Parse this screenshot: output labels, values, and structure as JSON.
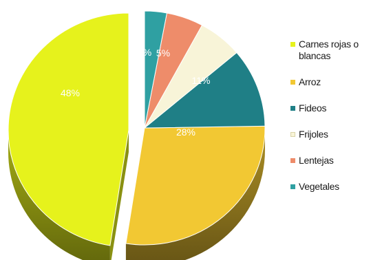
{
  "chart_data": {
    "type": "pie",
    "style": "3d-exploded",
    "categories": [
      "Carnes rojas o blancas",
      "Arroz",
      "Fideos",
      "Frijoles",
      "Lentejas",
      "Vegetales"
    ],
    "values": [
      48,
      28,
      11,
      6,
      5,
      3
    ],
    "value_labels": [
      "48%",
      "28%",
      "11%",
      "",
      "5%",
      "%"
    ],
    "colors": [
      "#e6f21c",
      "#f2c833",
      "#1f7f86",
      "#f8f4d8",
      "#ee8c6a",
      "#2fa0a2"
    ],
    "legend_labels": [
      "Carnes rojas o blancas",
      "Arroz",
      "Fideos",
      "Frijoles",
      "Lentejas",
      "Vegetales"
    ],
    "legend_position": "right"
  }
}
